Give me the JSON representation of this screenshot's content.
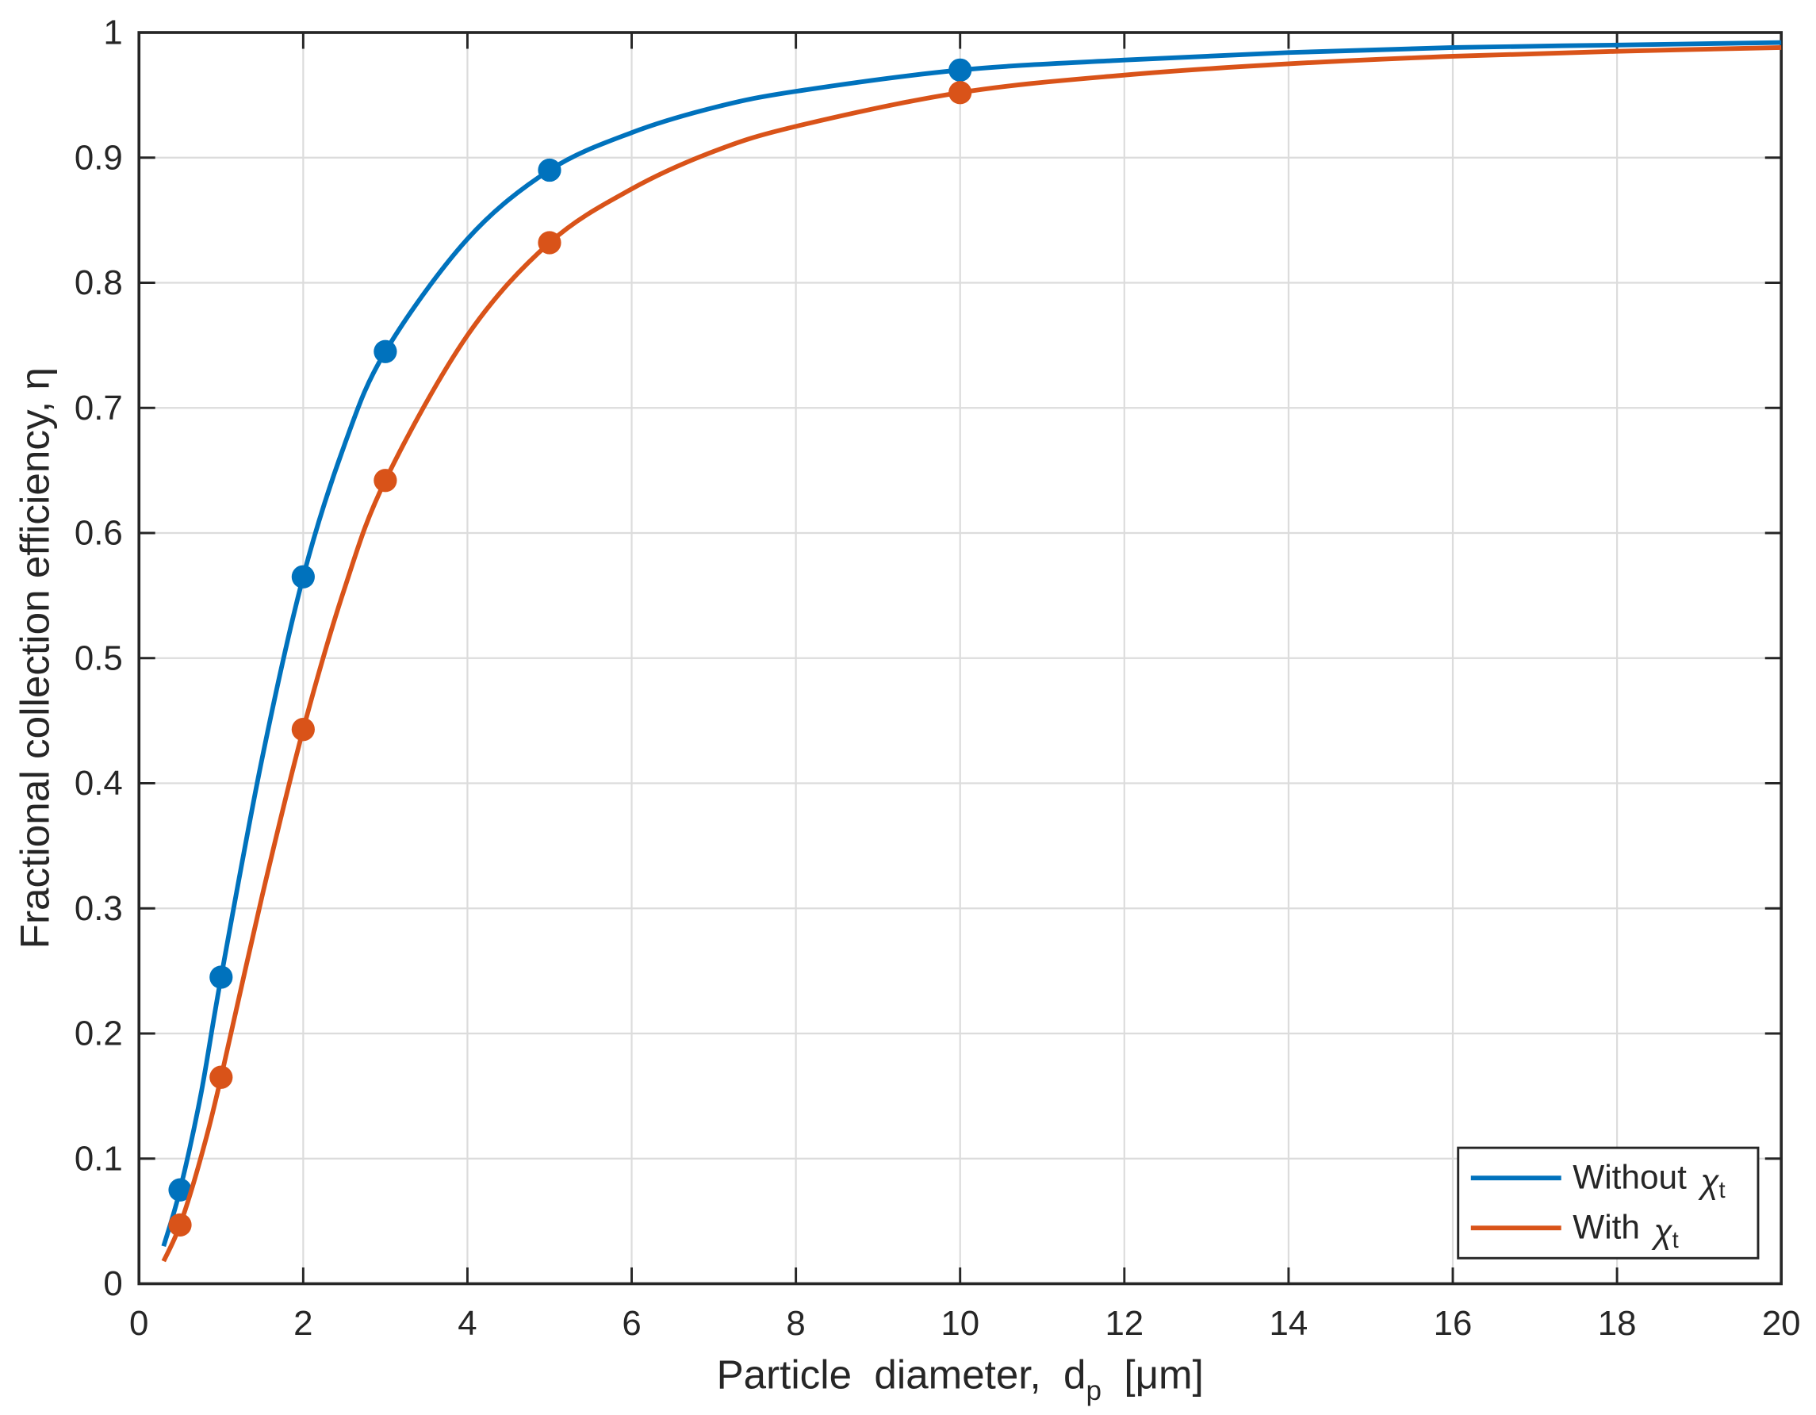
{
  "chart_data": {
    "type": "line",
    "xlabel": {
      "text": "Particle  diameter,  d",
      "sub": "p",
      "after": "  [μm]"
    },
    "ylabel": "Fractional collection efficiency, η",
    "xlim": [
      0,
      20
    ],
    "ylim": [
      0,
      1
    ],
    "xticks": [
      0,
      2,
      4,
      6,
      8,
      10,
      12,
      14,
      16,
      18,
      20
    ],
    "yticks": [
      0,
      0.1,
      0.2,
      0.3,
      0.4,
      0.5,
      0.6,
      0.7,
      0.8,
      0.9,
      1
    ],
    "grid": true,
    "legend": "lower-right",
    "series": [
      {
        "name": "Without",
        "symbol": "χ",
        "symbol_sub": "t",
        "color": "#0072bd",
        "x": [
          0.3,
          0.5,
          0.75,
          1,
          1.5,
          2,
          2.5,
          3,
          4,
          5,
          6,
          7,
          8,
          10,
          12,
          14,
          16,
          18,
          20
        ],
        "values": [
          0.03,
          0.075,
          0.15,
          0.245,
          0.42,
          0.565,
          0.67,
          0.745,
          0.835,
          0.89,
          0.92,
          0.94,
          0.953,
          0.97,
          0.978,
          0.984,
          0.988,
          0.99,
          0.992
        ],
        "marker_x": [
          0.5,
          1,
          2,
          3,
          5,
          10
        ],
        "marker_values": [
          0.075,
          0.245,
          0.565,
          0.745,
          0.89,
          0.97
        ]
      },
      {
        "name": "With",
        "symbol": "χ",
        "symbol_sub": "t",
        "color": "#d95319",
        "x": [
          0.3,
          0.5,
          0.75,
          1,
          1.5,
          2,
          2.5,
          3,
          4,
          5,
          6,
          7,
          8,
          10,
          12,
          14,
          16,
          18,
          20
        ],
        "values": [
          0.018,
          0.047,
          0.1,
          0.165,
          0.31,
          0.443,
          0.555,
          0.642,
          0.758,
          0.832,
          0.875,
          0.905,
          0.925,
          0.952,
          0.966,
          0.975,
          0.981,
          0.985,
          0.988
        ],
        "marker_x": [
          0.5,
          1,
          2,
          3,
          5,
          10
        ],
        "marker_values": [
          0.047,
          0.165,
          0.443,
          0.642,
          0.832,
          0.952
        ]
      }
    ]
  }
}
